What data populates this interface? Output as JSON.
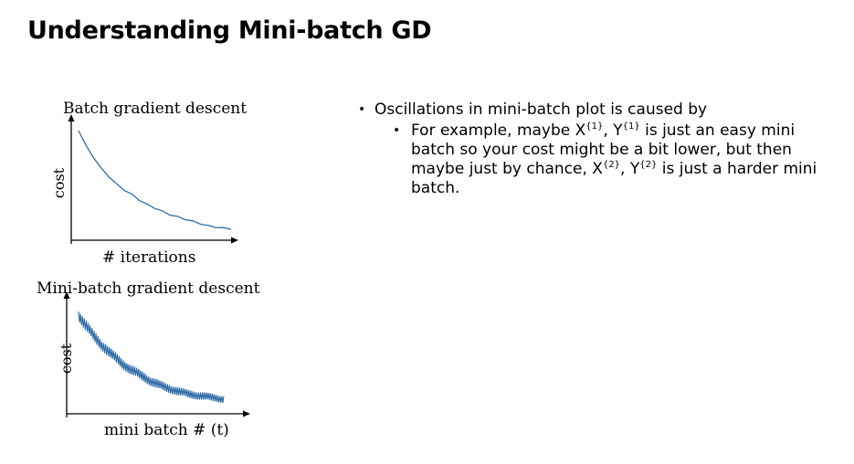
{
  "slide": {
    "title": "Understanding Mini-batch GD"
  },
  "chart_data": [
    {
      "type": "line",
      "title": "Batch gradient descent",
      "xlabel": "# iterations",
      "ylabel": "cost",
      "grid": false,
      "x": [
        0,
        0.05,
        0.1,
        0.15,
        0.2,
        0.25,
        0.3,
        0.35,
        0.4,
        0.45,
        0.5,
        0.55,
        0.6,
        0.65,
        0.7,
        0.75,
        0.8,
        0.85,
        0.9,
        0.95,
        1.0
      ],
      "series": [
        {
          "values": [
            1.0,
            0.86,
            0.76,
            0.66,
            0.59,
            0.52,
            0.47,
            0.43,
            0.38,
            0.34,
            0.31,
            0.28,
            0.25,
            0.23,
            0.21,
            0.19,
            0.17,
            0.15,
            0.14,
            0.13,
            0.12
          ],
          "color": "#2e6ca8"
        }
      ],
      "xlim": [
        0,
        1
      ],
      "ylim": [
        0,
        1.1
      ]
    },
    {
      "type": "line",
      "title": "Mini-batch gradient descent",
      "xlabel": "mini batch # (t)",
      "ylabel": "cost",
      "grid": false,
      "trend": [
        1.0,
        0.9,
        0.81,
        0.73,
        0.66,
        0.6,
        0.54,
        0.49,
        0.45,
        0.41,
        0.37,
        0.34,
        0.31,
        0.29,
        0.27,
        0.25,
        0.24,
        0.23,
        0.22,
        0.21,
        0.2
      ],
      "noise": "high-frequency oscillation around a decreasing trend",
      "series": [
        {
          "color": "#2e6ca8"
        }
      ],
      "xlim": [
        0,
        1
      ],
      "ylim": [
        0,
        1.1
      ]
    }
  ],
  "bullets": {
    "main": "Oscillations in mini-batch plot is caused by",
    "sub": {
      "t1": "For example, maybe X",
      "s1": "{1}",
      "t2": ", Y",
      "s2": "{1}",
      "t3": " is just an easy mini batch so your cost might be a bit lower, but then maybe just by chance, X",
      "s3": "{2}",
      "t4": ", Y",
      "s4": "{2}",
      "t5": " is just a harder mini batch."
    }
  }
}
